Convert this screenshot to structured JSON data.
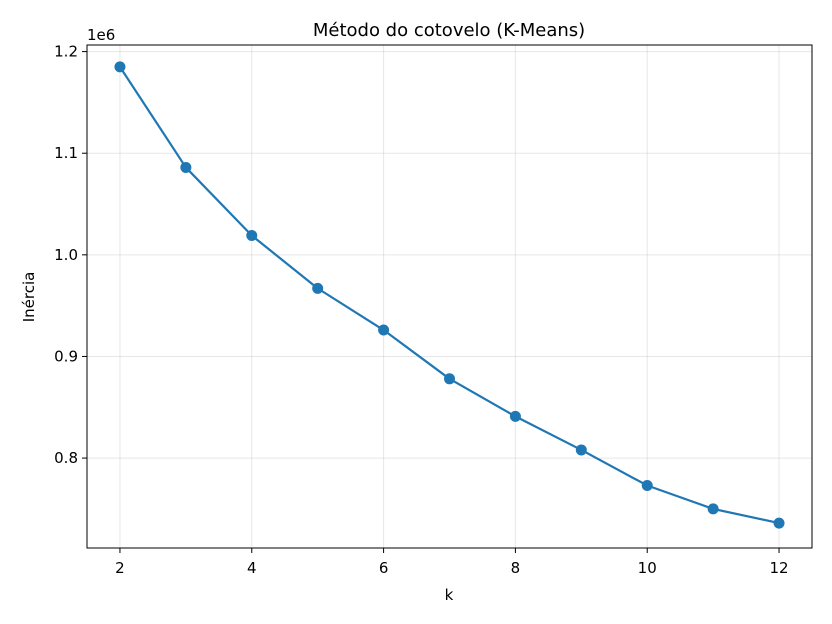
{
  "chart_data": {
    "type": "line",
    "title": "Método do cotovelo (K-Means)",
    "xlabel": "k",
    "ylabel": "Inércia",
    "y_offset_label": "1e6",
    "xlim": [
      1.5,
      12.5
    ],
    "ylim": [
      0.7115,
      1.2065
    ],
    "x_ticks": [
      2,
      4,
      6,
      8,
      10,
      12
    ],
    "y_ticks": [
      0.8,
      0.9,
      1.0,
      1.1,
      1.2
    ],
    "y_tick_labels": [
      "0.8",
      "0.9",
      "1.0",
      "1.1",
      "1.2"
    ],
    "grid": true,
    "marker": "circle",
    "line_color": "#1f77b4",
    "x": [
      2,
      3,
      4,
      5,
      6,
      7,
      8,
      9,
      10,
      11,
      12
    ],
    "series": [
      {
        "values": [
          1.185,
          1.086,
          1.019,
          0.967,
          0.926,
          0.878,
          0.841,
          0.808,
          0.773,
          0.75,
          0.736
        ]
      }
    ]
  }
}
